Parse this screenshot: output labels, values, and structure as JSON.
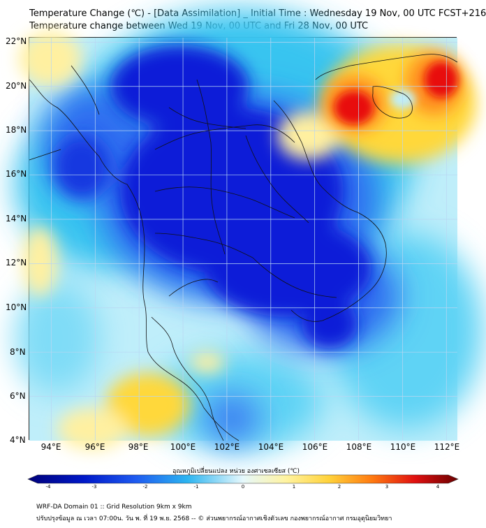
{
  "header": {
    "title_line1": "Temperature Change (℃) - [Data Assimilation] _ Initial Time : Wednesday 19 Nov, 00 UTC FCST+216",
    "title_line2": "Temperature change between Wed 19 Nov, 00 UTC and Fri 28 Nov, 00 UTC"
  },
  "map": {
    "lat_labels": [
      "22°N",
      "20°N",
      "18°N",
      "16°N",
      "14°N",
      "12°N",
      "10°N",
      "8°N",
      "6°N",
      "4°N"
    ],
    "lon_labels": [
      "94°E",
      "96°E",
      "98°E",
      "100°E",
      "102°E",
      "104°E",
      "106°E",
      "108°E",
      "110°E",
      "112°E"
    ],
    "extent": {
      "lon_min": 93.0,
      "lon_max": 112.5,
      "lat_min": 4.0,
      "lat_max": 22.2
    },
    "colors": {
      "strong_cooling": "#0a1fd8",
      "cooling": "#2f6df0",
      "mild_cooling": "#37c4f0",
      "neutral": "#bfeefa",
      "warming": "#ffd83a",
      "strong_warming": "#e81010",
      "borders": "#111111",
      "grid": "#b9d6f2"
    }
  },
  "colorbar": {
    "title": "อุณหภูมิเปลี่ยนแปลง หน่วย องศาเซลเซียส (℃)",
    "ticks": [
      "-4",
      "-3",
      "-2",
      "-1",
      "0",
      "1",
      "2",
      "3",
      "4"
    ],
    "range": [
      -4,
      4
    ]
  },
  "footer": {
    "line1": "WRF-DA Domain 01 :: Grid Resolution 9km x 9km",
    "line2": "ปรับปรุงข้อมูล ณ เวลา 07:00น. วัน พ. ที่ 19 พ.ย. 2568 -- © ส่วนพยากรณ์อากาศเชิงตัวเลข กองพยากรณ์อากาศ กรมอุตุนิยมวิทยา"
  }
}
